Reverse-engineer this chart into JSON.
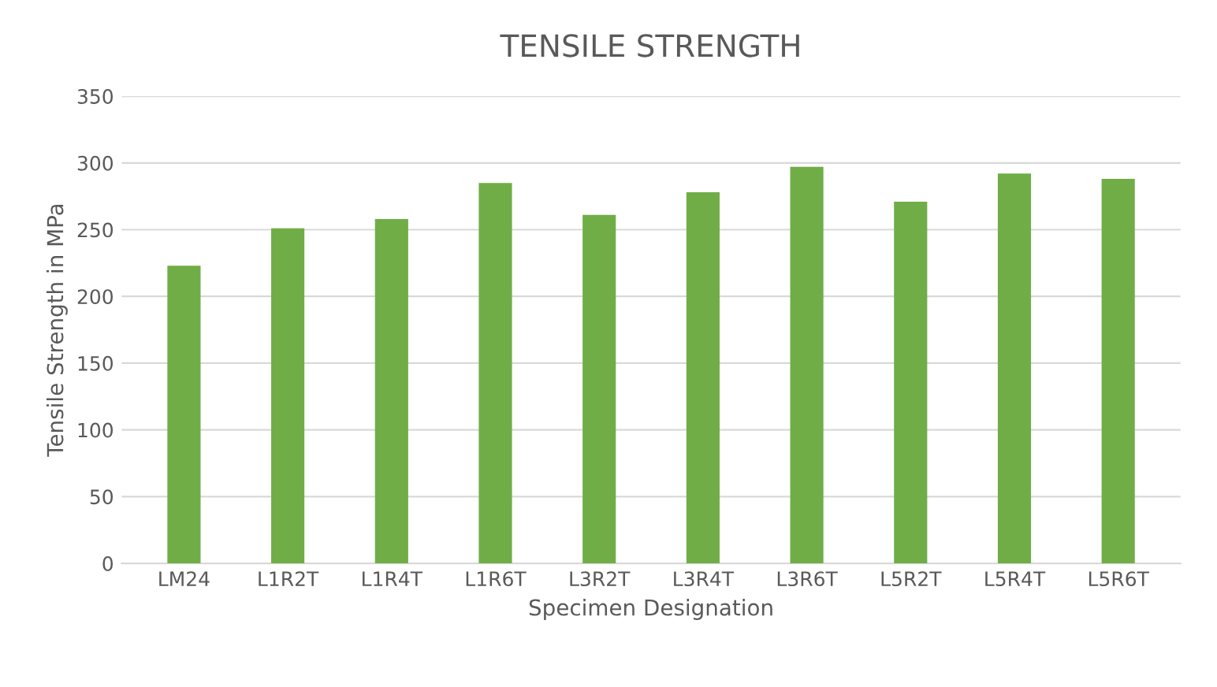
{
  "chart_data": {
    "type": "bar",
    "title": "TENSILE STRENGTH",
    "xlabel": "Specimen Designation",
    "ylabel": "Tensile Strength in MPa",
    "categories": [
      "LM24",
      "L1R2T",
      "L1R4T",
      "L1R6T",
      "L3R2T",
      "L3R4T",
      "L3R6T",
      "L5R2T",
      "L5R4T",
      "L5R6T"
    ],
    "values": [
      223,
      251,
      258,
      285,
      261,
      278,
      297,
      271,
      292,
      288
    ],
    "color": "#70ad47",
    "ylim": [
      0,
      350
    ],
    "yticks": [
      0,
      50,
      100,
      150,
      200,
      250,
      300,
      350
    ],
    "grid": "y"
  }
}
